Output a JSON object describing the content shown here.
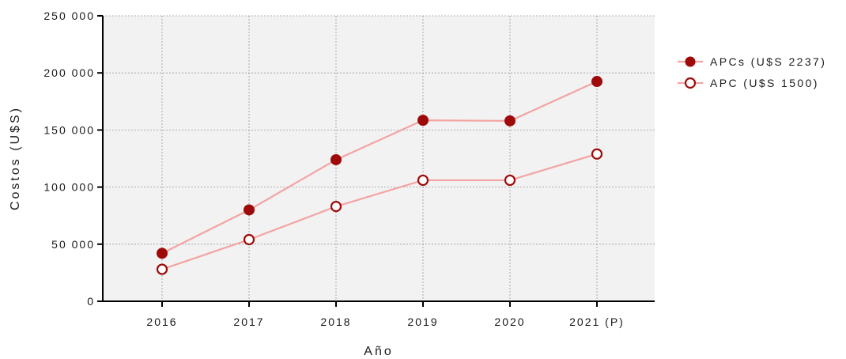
{
  "chart_data": {
    "type": "line",
    "categories": [
      "2016",
      "2017",
      "2018",
      "2019",
      "2020",
      "2021 (P)"
    ],
    "series": [
      {
        "name": "APCs (U$S 2237)",
        "values": [
          42000,
          80000,
          124000,
          158500,
          158000,
          192500
        ],
        "marker": "filled"
      },
      {
        "name": "APC (U$S 1500)",
        "values": [
          28000,
          54000,
          83000,
          106000,
          106000,
          129000
        ],
        "marker": "open"
      }
    ],
    "y_ticks": [
      0,
      50000,
      100000,
      150000,
      200000,
      250000
    ],
    "y_tick_labels": [
      "0",
      "50 000",
      "100 000",
      "150 000",
      "200 000",
      "250 000"
    ],
    "ylim": [
      0,
      250000
    ],
    "xlabel": "Año",
    "ylabel": "Costos (U$S)",
    "title": "",
    "grid": true,
    "legend_position": "top-right",
    "colors": {
      "line": "#f4a3a3",
      "marker": "#9e0a0a",
      "plot_bg": "#f2f2f2",
      "grid": "#9a9a9a"
    }
  }
}
